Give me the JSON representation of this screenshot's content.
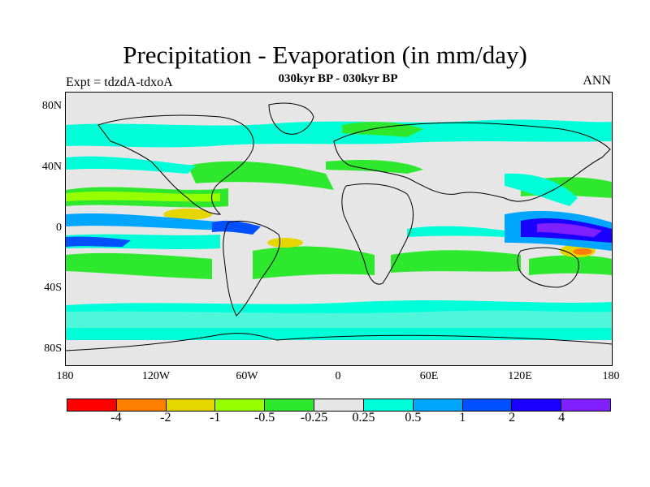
{
  "title": "Precipitation - Evaporation (in mm/day)",
  "subtitle": "030kyr BP - 030kyr BP",
  "expt_label": "Expt = tdzdA-tdxoA",
  "season": "ANN",
  "map": {
    "projection": "cylindrical-equidistant",
    "lon_range": [
      -180,
      180
    ],
    "lat_range": [
      -90,
      90
    ],
    "background_color": "#e6e6e6",
    "y_ticks": [
      "80N",
      "40N",
      "0",
      "40S",
      "80S"
    ],
    "x_ticks": [
      "180",
      "120W",
      "60W",
      "0",
      "60E",
      "120E",
      "180"
    ]
  },
  "colorbar": {
    "colors": [
      "#ff0000",
      "#ff8000",
      "#e6d600",
      "#96ff00",
      "#2ee82e",
      "#e6e6e6",
      "#00ffd8",
      "#00a6ff",
      "#0050ff",
      "#1a00ff",
      "#8020ff"
    ],
    "labels": [
      "-4",
      "-2",
      "-1",
      "-0.5",
      "-0.25",
      "0.25",
      "0.5",
      "1",
      "2",
      "4"
    ]
  }
}
